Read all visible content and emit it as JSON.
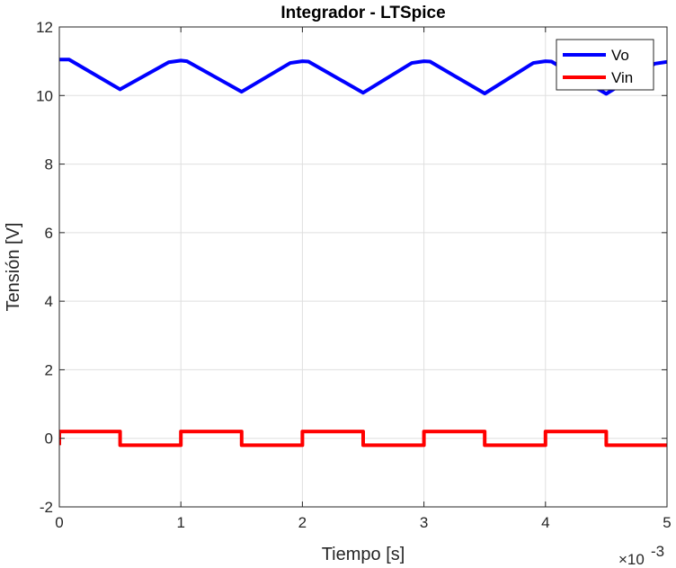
{
  "chart_data": {
    "type": "line",
    "title": "Integrador - LTSpice",
    "xlabel": "Tiempo [s]",
    "ylabel": "Tensión [V]",
    "x_exponent_label": "×10",
    "x_exponent_power": "-3",
    "xlim": [
      0,
      5
    ],
    "ylim": [
      -2,
      12
    ],
    "x_ticks": [
      0,
      1,
      2,
      3,
      4,
      5
    ],
    "x_tick_labels": [
      "0",
      "1",
      "2",
      "3",
      "4",
      "5"
    ],
    "y_ticks": [
      -2,
      0,
      2,
      4,
      6,
      8,
      10,
      12
    ],
    "y_tick_labels": [
      "-2",
      "0",
      "2",
      "4",
      "6",
      "8",
      "10",
      "12"
    ],
    "grid": true,
    "legend_position": "top-right",
    "series": [
      {
        "name": "Vo",
        "color": "#0000ff",
        "x": [
          0,
          0.08,
          0.5,
          0.9,
          1.0,
          1.05,
          1.5,
          1.9,
          2.0,
          2.05,
          2.5,
          2.9,
          3.0,
          3.05,
          3.5,
          3.9,
          4.0,
          4.05,
          4.5,
          4.9,
          5.0
        ],
        "y": [
          11.05,
          11.05,
          10.18,
          10.97,
          11.02,
          11.0,
          10.11,
          10.95,
          11.0,
          10.99,
          10.08,
          10.95,
          11.0,
          10.99,
          10.06,
          10.95,
          11.0,
          10.99,
          10.05,
          10.93,
          10.98
        ]
      },
      {
        "name": "Vin",
        "color": "#ff0000",
        "x": [
          0,
          0,
          0.5,
          0.5,
          1.0,
          1.0,
          1.5,
          1.5,
          2.0,
          2.0,
          2.5,
          2.5,
          3.0,
          3.0,
          3.5,
          3.5,
          4.0,
          4.0,
          4.5,
          4.5,
          5.0
        ],
        "y": [
          -0.2,
          0.2,
          0.2,
          -0.2,
          -0.2,
          0.2,
          0.2,
          -0.2,
          -0.2,
          0.2,
          0.2,
          -0.2,
          -0.2,
          0.2,
          0.2,
          -0.2,
          -0.2,
          0.2,
          0.2,
          -0.2,
          -0.2
        ]
      }
    ]
  }
}
